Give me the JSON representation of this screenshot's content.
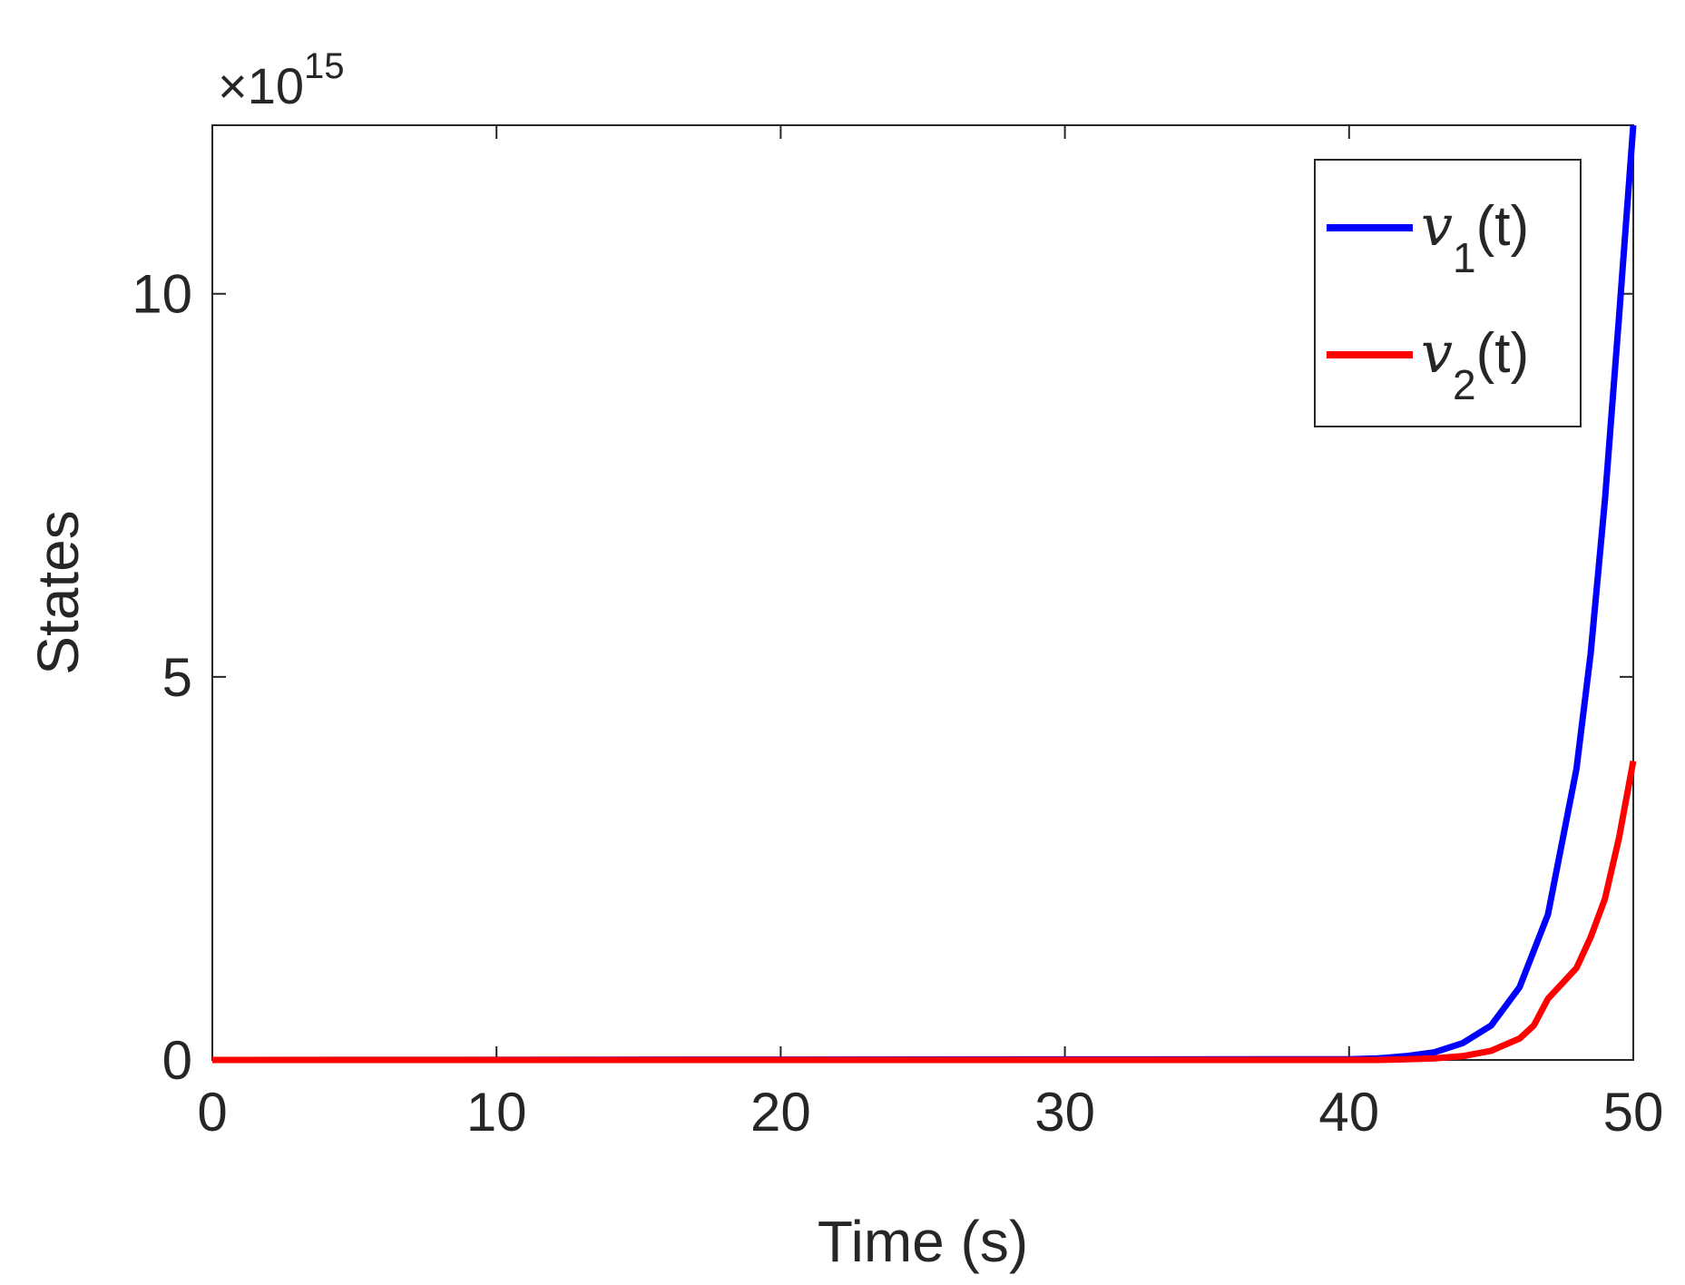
{
  "chart_data": {
    "type": "line",
    "title": "",
    "xlabel": "Time (s)",
    "ylabel": "States",
    "exponent_label": {
      "base": "×10",
      "power": "15"
    },
    "xlim": [
      0,
      50
    ],
    "ylim": [
      0,
      12.2
    ],
    "x_unit_scale": 1000000000000000.0,
    "xticks": [
      0,
      10,
      20,
      30,
      40,
      50
    ],
    "xtick_labels": [
      "0",
      "10",
      "20",
      "30",
      "40",
      "50"
    ],
    "yticks": [
      0,
      5,
      10
    ],
    "ytick_labels": [
      "0",
      "5",
      "10"
    ],
    "grid": false,
    "legend_position": "top-right",
    "series": [
      {
        "name_main": "v",
        "name_sub": "1",
        "name_suffix": "(t)",
        "color": "#0000ff",
        "x": [
          0,
          40,
          41,
          42,
          43,
          44,
          45,
          46,
          47,
          48,
          48.5,
          49,
          49.5,
          50
        ],
        "y": [
          0,
          0.01,
          0.02,
          0.05,
          0.1,
          0.22,
          0.45,
          0.95,
          1.9,
          3.8,
          5.3,
          7.3,
          9.7,
          12.2
        ]
      },
      {
        "name_main": "v",
        "name_sub": "2",
        "name_suffix": "(t)",
        "color": "#ff0000",
        "x": [
          0,
          41,
          42,
          43,
          44,
          45,
          46,
          46.5,
          47,
          48,
          48.5,
          49,
          49.5,
          50
        ],
        "y": [
          0,
          0,
          0.01,
          0.02,
          0.05,
          0.12,
          0.28,
          0.45,
          0.8,
          1.2,
          1.6,
          2.1,
          2.9,
          3.9
        ]
      }
    ]
  }
}
